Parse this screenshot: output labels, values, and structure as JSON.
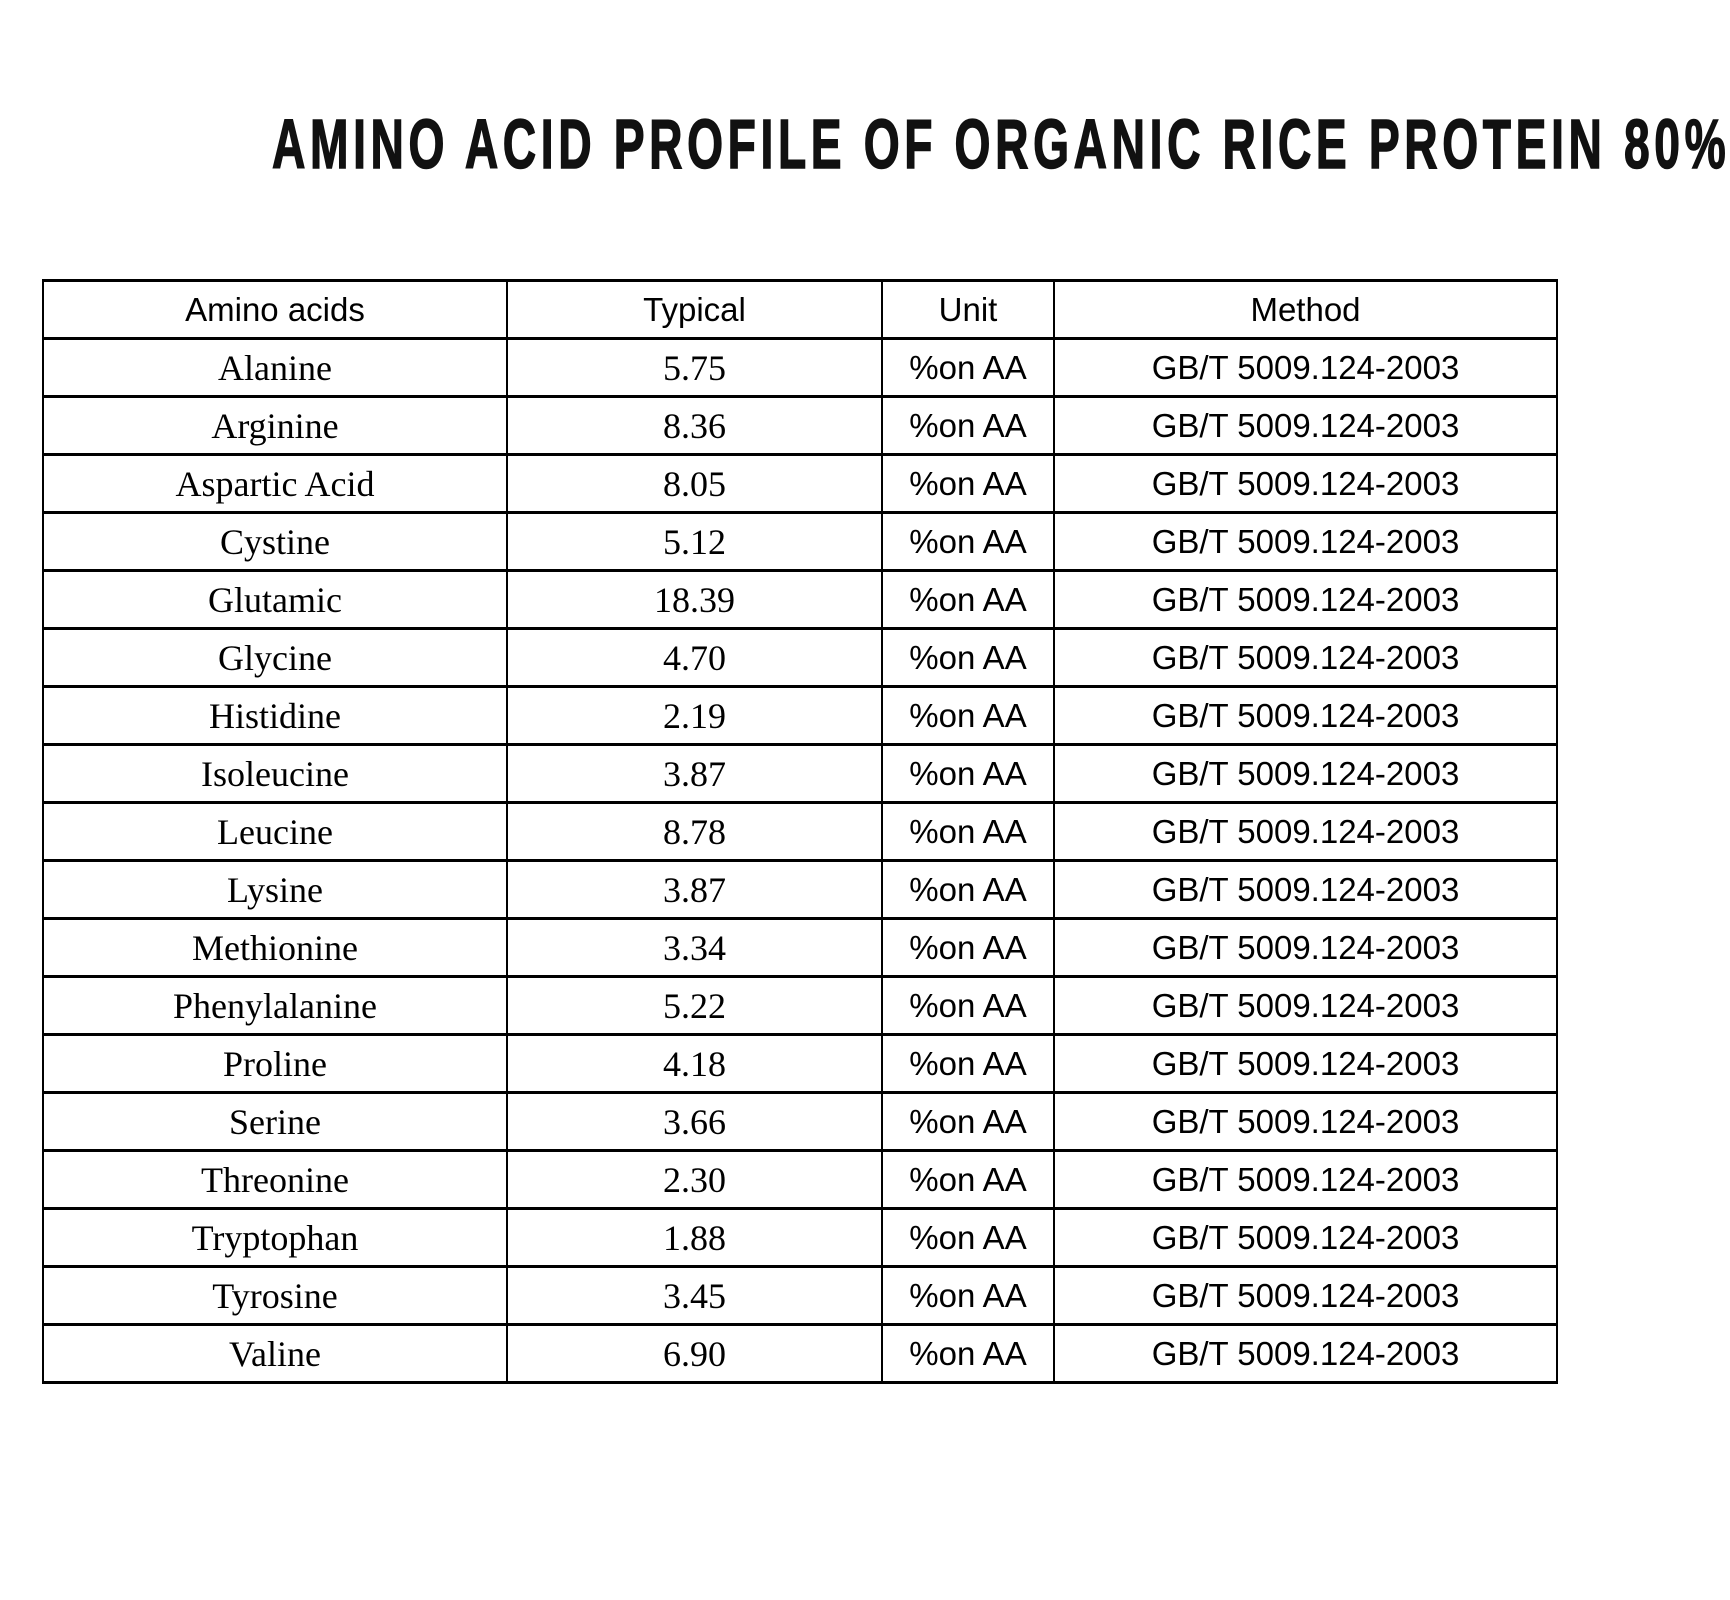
{
  "title": "AMINO ACID PROFILE OF ORGANIC RICE PROTEIN 80%",
  "colors": {
    "background": "#ffffff",
    "text": "#000000",
    "border": "#000000"
  },
  "table": {
    "headers": [
      "Amino acids",
      "Typical",
      "Unit",
      "Method"
    ],
    "rows": [
      {
        "name": "Alanine",
        "typical": "5.75",
        "unit": "%on AA",
        "method": "GB/T 5009.124-2003"
      },
      {
        "name": "Arginine",
        "typical": "8.36",
        "unit": "%on AA",
        "method": "GB/T 5009.124-2003"
      },
      {
        "name": "Aspartic Acid",
        "typical": "8.05",
        "unit": "%on AA",
        "method": "GB/T 5009.124-2003"
      },
      {
        "name": "Cystine",
        "typical": "5.12",
        "unit": "%on AA",
        "method": "GB/T 5009.124-2003"
      },
      {
        "name": "Glutamic",
        "typical": "18.39",
        "unit": "%on AA",
        "method": "GB/T 5009.124-2003"
      },
      {
        "name": "Glycine",
        "typical": "4.70",
        "unit": "%on AA",
        "method": "GB/T 5009.124-2003"
      },
      {
        "name": "Histidine",
        "typical": "2.19",
        "unit": "%on AA",
        "method": "GB/T 5009.124-2003"
      },
      {
        "name": "Isoleucine",
        "typical": "3.87",
        "unit": "%on AA",
        "method": "GB/T 5009.124-2003"
      },
      {
        "name": "Leucine",
        "typical": "8.78",
        "unit": "%on AA",
        "method": "GB/T 5009.124-2003"
      },
      {
        "name": "Lysine",
        "typical": "3.87",
        "unit": "%on AA",
        "method": "GB/T 5009.124-2003"
      },
      {
        "name": "Methionine",
        "typical": "3.34",
        "unit": "%on AA",
        "method": "GB/T 5009.124-2003"
      },
      {
        "name": "Phenylalanine",
        "typical": "5.22",
        "unit": "%on AA",
        "method": "GB/T 5009.124-2003"
      },
      {
        "name": "Proline",
        "typical": "4.18",
        "unit": "%on AA",
        "method": "GB/T 5009.124-2003"
      },
      {
        "name": "Serine",
        "typical": "3.66",
        "unit": "%on AA",
        "method": "GB/T 5009.124-2003"
      },
      {
        "name": "Threonine",
        "typical": "2.30",
        "unit": "%on AA",
        "method": "GB/T 5009.124-2003"
      },
      {
        "name": "Tryptophan",
        "typical": "1.88",
        "unit": "%on AA",
        "method": "GB/T 5009.124-2003"
      },
      {
        "name": "Tyrosine",
        "typical": "3.45",
        "unit": "%on AA",
        "method": "GB/T 5009.124-2003"
      },
      {
        "name": "Valine",
        "typical": "6.90",
        "unit": "%on AA",
        "method": "GB/T 5009.124-2003"
      }
    ]
  }
}
